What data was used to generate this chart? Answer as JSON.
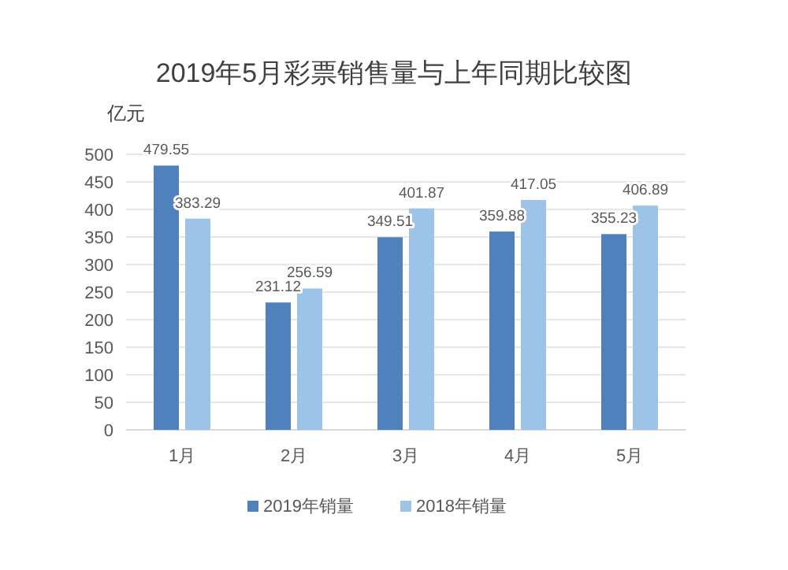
{
  "chart_data": {
    "type": "bar",
    "title": "2019年5月彩票销售量与上年同期比较图",
    "ylabel": "亿元",
    "categories": [
      "1月",
      "2月",
      "3月",
      "4月",
      "5月"
    ],
    "series": [
      {
        "name": "2019年销量",
        "color": "#4f81bd",
        "values": [
          479.55,
          231.12,
          349.51,
          359.88,
          355.23
        ]
      },
      {
        "name": "2018年销量",
        "color": "#9dc3e6",
        "values": [
          383.29,
          256.59,
          401.87,
          417.05,
          406.89
        ]
      }
    ],
    "ylim": [
      0,
      500
    ],
    "yticks": [
      0,
      50,
      100,
      150,
      200,
      250,
      300,
      350,
      400,
      450,
      500
    ],
    "grid": "y",
    "legend": "bottom",
    "data_labels": true
  }
}
